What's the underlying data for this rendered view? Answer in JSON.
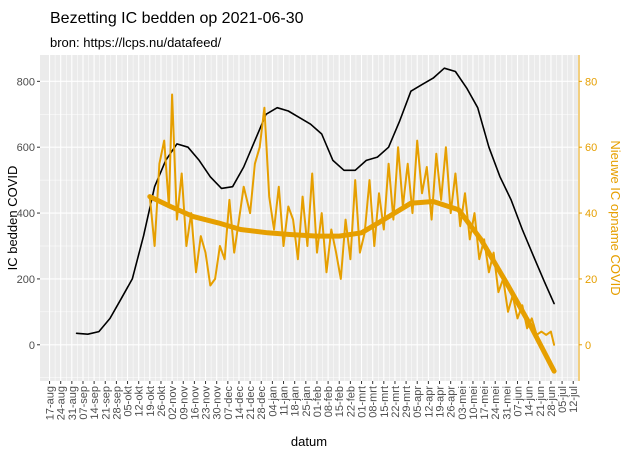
{
  "chart_data": {
    "type": "line",
    "title": "Bezetting IC bedden op 2021-06-30",
    "subtitle": "bron: https://lcps.nu/datafeed/",
    "xlabel": "datum",
    "ylabel": "IC bedden COVID",
    "y2label": "Nieuwe IC opname COVID",
    "xlim": [
      "2020-08-11",
      "2021-07-15"
    ],
    "ylim": [
      -110,
      880
    ],
    "y2lim": [
      -11,
      88
    ],
    "yticks": [
      0,
      200,
      400,
      600,
      800
    ],
    "y2ticks": [
      0,
      20,
      40,
      60,
      80
    ],
    "xticks": [
      "2020-08-17",
      "2020-08-24",
      "2020-08-31",
      "2020-09-07",
      "2020-09-14",
      "2020-09-21",
      "2020-09-28",
      "2020-10-05",
      "2020-10-12",
      "2020-10-19",
      "2020-10-26",
      "2020-11-02",
      "2020-11-09",
      "2020-11-16",
      "2020-11-23",
      "2020-11-30",
      "2020-12-07",
      "2020-12-14",
      "2020-12-21",
      "2020-12-28",
      "2021-01-04",
      "2021-01-11",
      "2021-01-18",
      "2021-01-25",
      "2021-02-01",
      "2021-02-08",
      "2021-02-15",
      "2021-02-22",
      "2021-03-01",
      "2021-03-08",
      "2021-03-15",
      "2021-03-22",
      "2021-03-29",
      "2021-04-05",
      "2021-04-12",
      "2021-04-19",
      "2021-04-26",
      "2021-05-03",
      "2021-05-10",
      "2021-05-17",
      "2021-05-24",
      "2021-05-31",
      "2021-06-07",
      "2021-06-14",
      "2021-06-21",
      "2021-06-28",
      "2021-07-05",
      "2021-07-12"
    ],
    "xtick_labels": [
      "17-aug",
      "24-aug",
      "31-aug",
      "07-sep",
      "14-sep",
      "21-sep",
      "28-sep",
      "05-okt",
      "12-okt",
      "19-okt",
      "26-okt",
      "02-nov",
      "09-nov",
      "16-nov",
      "23-nov",
      "30-nov",
      "07-dec",
      "14-dec",
      "21-dec",
      "28-dec",
      "04-jan",
      "11-jan",
      "18-jan",
      "25-jan",
      "01-feb",
      "08-feb",
      "15-feb",
      "22-feb",
      "01-mrt",
      "08-mrt",
      "15-mrt",
      "22-mrt",
      "29-mrt",
      "05-apr",
      "12-apr",
      "19-apr",
      "26-apr",
      "03-mei",
      "10-mei",
      "17-mei",
      "24-mei",
      "31-mei",
      "07-jun",
      "14-jun",
      "21-jun",
      "28-jun",
      "05-jul",
      "12-jul"
    ],
    "grid": true,
    "colors": {
      "beds": "#000000",
      "admissions": "#E69F00",
      "panel": "#EBEBEB"
    },
    "series": [
      {
        "axis": "left",
        "points": [
          [
            "2020-09-03",
            35
          ],
          [
            "2020-09-10",
            32
          ],
          [
            "2020-09-17",
            40
          ],
          [
            "2020-09-24",
            80
          ],
          [
            "2020-10-01",
            140
          ],
          [
            "2020-10-08",
            200
          ],
          [
            "2020-10-15",
            330
          ],
          [
            "2020-10-22",
            480
          ],
          [
            "2020-10-29",
            560
          ],
          [
            "2020-11-05",
            610
          ],
          [
            "2020-11-12",
            600
          ],
          [
            "2020-11-19",
            560
          ],
          [
            "2020-11-26",
            510
          ],
          [
            "2020-12-03",
            475
          ],
          [
            "2020-12-10",
            480
          ],
          [
            "2020-12-17",
            540
          ],
          [
            "2020-12-24",
            620
          ],
          [
            "2020-12-31",
            700
          ],
          [
            "2021-01-07",
            720
          ],
          [
            "2021-01-14",
            710
          ],
          [
            "2021-01-21",
            690
          ],
          [
            "2021-01-28",
            670
          ],
          [
            "2021-02-04",
            640
          ],
          [
            "2021-02-11",
            560
          ],
          [
            "2021-02-18",
            530
          ],
          [
            "2021-02-25",
            530
          ],
          [
            "2021-03-04",
            560
          ],
          [
            "2021-03-11",
            570
          ],
          [
            "2021-03-18",
            600
          ],
          [
            "2021-03-25",
            680
          ],
          [
            "2021-04-01",
            770
          ],
          [
            "2021-04-08",
            790
          ],
          [
            "2021-04-15",
            810
          ],
          [
            "2021-04-22",
            840
          ],
          [
            "2021-04-29",
            830
          ],
          [
            "2021-05-06",
            780
          ],
          [
            "2021-05-13",
            720
          ],
          [
            "2021-05-20",
            600
          ],
          [
            "2021-05-27",
            510
          ],
          [
            "2021-06-03",
            440
          ],
          [
            "2021-06-10",
            350
          ],
          [
            "2021-06-17",
            270
          ],
          [
            "2021-06-24",
            190
          ],
          [
            "2021-06-30",
            125
          ]
        ]
      },
      {
        "axis": "right",
        "points": [
          [
            "2020-10-19",
            45
          ],
          [
            "2020-10-22",
            30
          ],
          [
            "2020-10-25",
            55
          ],
          [
            "2020-10-28",
            62
          ],
          [
            "2020-10-31",
            42
          ],
          [
            "2020-11-02",
            76
          ],
          [
            "2020-11-05",
            38
          ],
          [
            "2020-11-08",
            52
          ],
          [
            "2020-11-11",
            30
          ],
          [
            "2020-11-14",
            40
          ],
          [
            "2020-11-17",
            22
          ],
          [
            "2020-11-20",
            33
          ],
          [
            "2020-11-23",
            28
          ],
          [
            "2020-11-26",
            18
          ],
          [
            "2020-11-29",
            20
          ],
          [
            "2020-12-02",
            30
          ],
          [
            "2020-12-05",
            26
          ],
          [
            "2020-12-08",
            44
          ],
          [
            "2020-12-11",
            28
          ],
          [
            "2020-12-14",
            38
          ],
          [
            "2020-12-17",
            48
          ],
          [
            "2020-12-21",
            40
          ],
          [
            "2020-12-24",
            55
          ],
          [
            "2020-12-27",
            60
          ],
          [
            "2020-12-30",
            72
          ],
          [
            "2021-01-02",
            45
          ],
          [
            "2021-01-05",
            35
          ],
          [
            "2021-01-08",
            48
          ],
          [
            "2021-01-11",
            30
          ],
          [
            "2021-01-14",
            42
          ],
          [
            "2021-01-17",
            38
          ],
          [
            "2021-01-20",
            26
          ],
          [
            "2021-01-23",
            45
          ],
          [
            "2021-01-26",
            30
          ],
          [
            "2021-01-29",
            52
          ],
          [
            "2021-02-01",
            28
          ],
          [
            "2021-02-04",
            40
          ],
          [
            "2021-02-07",
            22
          ],
          [
            "2021-02-10",
            35
          ],
          [
            "2021-02-13",
            28
          ],
          [
            "2021-02-16",
            20
          ],
          [
            "2021-02-19",
            38
          ],
          [
            "2021-02-22",
            26
          ],
          [
            "2021-02-25",
            50
          ],
          [
            "2021-02-28",
            28
          ],
          [
            "2021-03-03",
            34
          ],
          [
            "2021-03-06",
            50
          ],
          [
            "2021-03-09",
            30
          ],
          [
            "2021-03-12",
            46
          ],
          [
            "2021-03-15",
            35
          ],
          [
            "2021-03-18",
            55
          ],
          [
            "2021-03-21",
            38
          ],
          [
            "2021-03-24",
            60
          ],
          [
            "2021-03-27",
            42
          ],
          [
            "2021-03-30",
            55
          ],
          [
            "2021-04-02",
            40
          ],
          [
            "2021-04-05",
            62
          ],
          [
            "2021-04-08",
            46
          ],
          [
            "2021-04-11",
            54
          ],
          [
            "2021-04-14",
            38
          ],
          [
            "2021-04-17",
            58
          ],
          [
            "2021-04-20",
            44
          ],
          [
            "2021-04-23",
            60
          ],
          [
            "2021-04-26",
            40
          ],
          [
            "2021-04-29",
            52
          ],
          [
            "2021-05-02",
            36
          ],
          [
            "2021-05-05",
            46
          ],
          [
            "2021-05-08",
            32
          ],
          [
            "2021-05-11",
            40
          ],
          [
            "2021-05-14",
            26
          ],
          [
            "2021-05-17",
            32
          ],
          [
            "2021-05-20",
            22
          ],
          [
            "2021-05-23",
            28
          ],
          [
            "2021-05-26",
            16
          ],
          [
            "2021-05-29",
            20
          ],
          [
            "2021-06-01",
            10
          ],
          [
            "2021-06-04",
            15
          ],
          [
            "2021-06-07",
            8
          ],
          [
            "2021-06-10",
            12
          ],
          [
            "2021-06-13",
            5
          ],
          [
            "2021-06-16",
            8
          ],
          [
            "2021-06-19",
            3
          ],
          [
            "2021-06-22",
            4
          ],
          [
            "2021-06-25",
            3
          ],
          [
            "2021-06-28",
            4
          ],
          [
            "2021-06-30",
            0
          ]
        ]
      },
      {
        "axis": "right",
        "kind": "smooth",
        "points": [
          [
            "2020-10-19",
            45
          ],
          [
            "2020-11-01",
            42
          ],
          [
            "2020-11-15",
            39
          ],
          [
            "2020-12-01",
            37
          ],
          [
            "2020-12-15",
            35
          ],
          [
            "2021-01-01",
            34
          ],
          [
            "2021-01-15",
            33.5
          ],
          [
            "2021-02-01",
            33
          ],
          [
            "2021-02-15",
            33
          ],
          [
            "2021-03-01",
            34
          ],
          [
            "2021-03-15",
            38
          ],
          [
            "2021-04-01",
            43
          ],
          [
            "2021-04-15",
            43.5
          ],
          [
            "2021-05-01",
            41
          ],
          [
            "2021-05-15",
            32
          ],
          [
            "2021-06-01",
            18
          ],
          [
            "2021-06-15",
            6
          ],
          [
            "2021-06-30",
            -8
          ]
        ]
      }
    ]
  }
}
